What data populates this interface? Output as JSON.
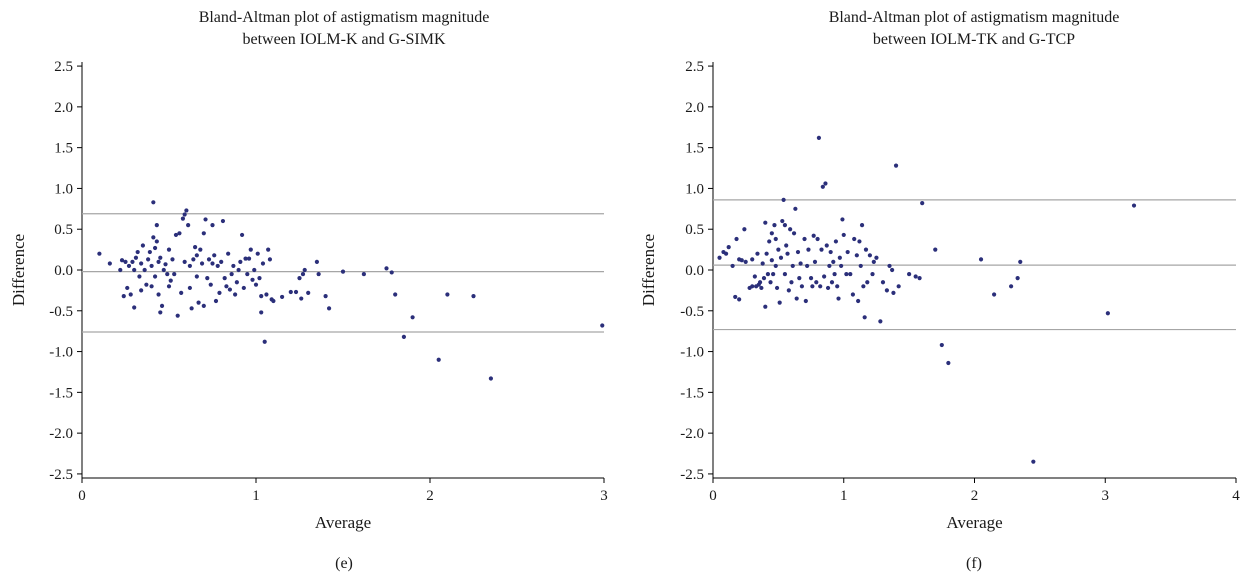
{
  "chart_data": [
    {
      "type": "scatter",
      "panel_label": "(e)",
      "title": "Bland-Altman plot of astigmatism magnitude",
      "subtitle": "between IOLM-K and G-SIMK",
      "xlabel": "Average",
      "ylabel": "Difference",
      "xlim": [
        0,
        3
      ],
      "ylim": [
        -2.55,
        2.55
      ],
      "xticks": [
        "0",
        "1",
        "2",
        "3"
      ],
      "yticks": [
        "2.5",
        "2.0",
        "1.5",
        "1.0",
        "0.5",
        "0.0",
        "-0.5",
        "-1.0",
        "-1.5",
        "-2.0",
        "-2.5"
      ],
      "grid": false,
      "reference_lines": [
        0.69,
        -0.02,
        -0.76
      ],
      "points": [
        [
          0.1,
          0.2
        ],
        [
          0.16,
          0.08
        ],
        [
          0.22,
          0.0
        ],
        [
          0.23,
          0.12
        ],
        [
          0.24,
          -0.32
        ],
        [
          0.25,
          0.1
        ],
        [
          0.26,
          -0.22
        ],
        [
          0.27,
          0.05
        ],
        [
          0.28,
          -0.3
        ],
        [
          0.29,
          0.1
        ],
        [
          0.3,
          0.0
        ],
        [
          0.3,
          -0.46
        ],
        [
          0.31,
          0.15
        ],
        [
          0.32,
          0.22
        ],
        [
          0.33,
          -0.08
        ],
        [
          0.34,
          0.08
        ],
        [
          0.34,
          -0.25
        ],
        [
          0.35,
          0.3
        ],
        [
          0.36,
          0.0
        ],
        [
          0.37,
          -0.18
        ],
        [
          0.38,
          0.13
        ],
        [
          0.39,
          0.22
        ],
        [
          0.4,
          -0.2
        ],
        [
          0.4,
          0.05
        ],
        [
          0.41,
          0.83
        ],
        [
          0.41,
          0.4
        ],
        [
          0.42,
          0.27
        ],
        [
          0.42,
          -0.08
        ],
        [
          0.43,
          0.35
        ],
        [
          0.43,
          0.55
        ],
        [
          0.44,
          0.1
        ],
        [
          0.44,
          -0.3
        ],
        [
          0.45,
          0.15
        ],
        [
          0.45,
          -0.52
        ],
        [
          0.46,
          -0.44
        ],
        [
          0.47,
          0.0
        ],
        [
          0.48,
          0.07
        ],
        [
          0.49,
          -0.05
        ],
        [
          0.5,
          0.25
        ],
        [
          0.5,
          -0.2
        ],
        [
          0.51,
          -0.13
        ],
        [
          0.52,
          0.13
        ],
        [
          0.53,
          -0.05
        ],
        [
          0.54,
          0.43
        ],
        [
          0.55,
          -0.56
        ],
        [
          0.56,
          0.45
        ],
        [
          0.57,
          -0.28
        ],
        [
          0.58,
          0.63
        ],
        [
          0.59,
          0.1
        ],
        [
          0.59,
          0.68
        ],
        [
          0.6,
          0.73
        ],
        [
          0.61,
          0.55
        ],
        [
          0.62,
          0.05
        ],
        [
          0.62,
          -0.22
        ],
        [
          0.63,
          -0.47
        ],
        [
          0.64,
          0.13
        ],
        [
          0.65,
          0.28
        ],
        [
          0.66,
          0.18
        ],
        [
          0.66,
          -0.08
        ],
        [
          0.67,
          -0.4
        ],
        [
          0.68,
          0.25
        ],
        [
          0.69,
          0.08
        ],
        [
          0.7,
          0.45
        ],
        [
          0.7,
          -0.44
        ],
        [
          0.71,
          0.62
        ],
        [
          0.72,
          -0.1
        ],
        [
          0.73,
          0.13
        ],
        [
          0.74,
          -0.18
        ],
        [
          0.75,
          0.08
        ],
        [
          0.75,
          0.55
        ],
        [
          0.76,
          0.18
        ],
        [
          0.77,
          -0.38
        ],
        [
          0.78,
          0.05
        ],
        [
          0.79,
          -0.28
        ],
        [
          0.8,
          0.1
        ],
        [
          0.81,
          0.6
        ],
        [
          0.82,
          -0.1
        ],
        [
          0.83,
          -0.2
        ],
        [
          0.84,
          0.2
        ],
        [
          0.85,
          -0.24
        ],
        [
          0.86,
          -0.05
        ],
        [
          0.87,
          0.05
        ],
        [
          0.88,
          -0.3
        ],
        [
          0.89,
          -0.15
        ],
        [
          0.9,
          0.0
        ],
        [
          0.91,
          0.1
        ],
        [
          0.92,
          0.43
        ],
        [
          0.93,
          -0.22
        ],
        [
          0.94,
          0.14
        ],
        [
          0.95,
          -0.05
        ],
        [
          0.96,
          0.14
        ],
        [
          0.97,
          0.25
        ],
        [
          0.98,
          -0.12
        ],
        [
          0.99,
          0.0
        ],
        [
          1.0,
          -0.18
        ],
        [
          1.01,
          0.2
        ],
        [
          1.02,
          -0.1
        ],
        [
          1.03,
          -0.32
        ],
        [
          1.03,
          -0.52
        ],
        [
          1.04,
          0.08
        ],
        [
          1.05,
          -0.88
        ],
        [
          1.06,
          -0.3
        ],
        [
          1.07,
          0.25
        ],
        [
          1.08,
          0.13
        ],
        [
          1.09,
          -0.36
        ],
        [
          1.1,
          -0.38
        ],
        [
          1.15,
          -0.33
        ],
        [
          1.2,
          -0.27
        ],
        [
          1.23,
          -0.27
        ],
        [
          1.25,
          -0.1
        ],
        [
          1.26,
          -0.35
        ],
        [
          1.27,
          -0.05
        ],
        [
          1.28,
          0.0
        ],
        [
          1.3,
          -0.28
        ],
        [
          1.35,
          0.1
        ],
        [
          1.36,
          -0.05
        ],
        [
          1.4,
          -0.32
        ],
        [
          1.42,
          -0.47
        ],
        [
          1.5,
          -0.02
        ],
        [
          1.62,
          -0.05
        ],
        [
          1.75,
          0.02
        ],
        [
          1.78,
          -0.03
        ],
        [
          1.8,
          -0.3
        ],
        [
          1.85,
          -0.82
        ],
        [
          1.9,
          -0.58
        ],
        [
          2.05,
          -1.1
        ],
        [
          2.1,
          -0.3
        ],
        [
          2.25,
          -0.32
        ],
        [
          2.35,
          -1.33
        ],
        [
          2.99,
          -0.68
        ]
      ]
    },
    {
      "type": "scatter",
      "panel_label": "(f)",
      "title": "Bland-Altman plot of astigmatism magnitude",
      "subtitle": "between IOLM-TK and G-TCP",
      "xlabel": "Average",
      "ylabel": "Difference",
      "xlim": [
        0,
        4
      ],
      "ylim": [
        -2.55,
        2.55
      ],
      "xticks": [
        "0",
        "1",
        "2",
        "3",
        "4"
      ],
      "yticks": [
        "2.5",
        "2.0",
        "1.5",
        "1.0",
        "0.5",
        "0.0",
        "-0.5",
        "-1.0",
        "-1.5",
        "-2.0",
        "-2.5"
      ],
      "grid": false,
      "reference_lines": [
        0.86,
        0.06,
        -0.73
      ],
      "points": [
        [
          0.05,
          0.15
        ],
        [
          0.08,
          0.22
        ],
        [
          0.1,
          0.2
        ],
        [
          0.12,
          0.28
        ],
        [
          0.15,
          0.05
        ],
        [
          0.17,
          -0.33
        ],
        [
          0.18,
          0.38
        ],
        [
          0.2,
          -0.36
        ],
        [
          0.2,
          0.13
        ],
        [
          0.22,
          0.12
        ],
        [
          0.24,
          0.5
        ],
        [
          0.25,
          0.1
        ],
        [
          0.28,
          -0.22
        ],
        [
          0.3,
          0.13
        ],
        [
          0.3,
          -0.2
        ],
        [
          0.32,
          -0.08
        ],
        [
          0.33,
          -0.2
        ],
        [
          0.34,
          0.2
        ],
        [
          0.35,
          -0.18
        ],
        [
          0.36,
          -0.15
        ],
        [
          0.37,
          -0.22
        ],
        [
          0.38,
          0.08
        ],
        [
          0.39,
          -0.1
        ],
        [
          0.4,
          -0.45
        ],
        [
          0.4,
          0.58
        ],
        [
          0.41,
          0.2
        ],
        [
          0.42,
          -0.05
        ],
        [
          0.43,
          0.35
        ],
        [
          0.44,
          -0.15
        ],
        [
          0.45,
          0.45
        ],
        [
          0.45,
          0.12
        ],
        [
          0.46,
          -0.05
        ],
        [
          0.47,
          0.55
        ],
        [
          0.48,
          0.38
        ],
        [
          0.48,
          0.05
        ],
        [
          0.49,
          -0.22
        ],
        [
          0.5,
          0.25
        ],
        [
          0.51,
          -0.4
        ],
        [
          0.52,
          0.15
        ],
        [
          0.53,
          0.6
        ],
        [
          0.54,
          0.86
        ],
        [
          0.55,
          0.55
        ],
        [
          0.55,
          -0.05
        ],
        [
          0.56,
          0.3
        ],
        [
          0.57,
          0.2
        ],
        [
          0.58,
          -0.25
        ],
        [
          0.59,
          0.5
        ],
        [
          0.6,
          -0.15
        ],
        [
          0.61,
          0.05
        ],
        [
          0.62,
          0.45
        ],
        [
          0.63,
          0.75
        ],
        [
          0.64,
          -0.35
        ],
        [
          0.65,
          0.22
        ],
        [
          0.66,
          -0.1
        ],
        [
          0.67,
          0.08
        ],
        [
          0.68,
          -0.2
        ],
        [
          0.7,
          0.38
        ],
        [
          0.71,
          -0.38
        ],
        [
          0.72,
          0.05
        ],
        [
          0.73,
          0.25
        ],
        [
          0.75,
          -0.1
        ],
        [
          0.76,
          -0.2
        ],
        [
          0.77,
          0.42
        ],
        [
          0.78,
          0.1
        ],
        [
          0.79,
          -0.15
        ],
        [
          0.8,
          0.38
        ],
        [
          0.81,
          1.62
        ],
        [
          0.82,
          -0.2
        ],
        [
          0.83,
          0.25
        ],
        [
          0.84,
          1.02
        ],
        [
          0.85,
          -0.08
        ],
        [
          0.86,
          1.06
        ],
        [
          0.87,
          0.3
        ],
        [
          0.88,
          -0.22
        ],
        [
          0.89,
          0.05
        ],
        [
          0.9,
          0.22
        ],
        [
          0.91,
          -0.15
        ],
        [
          0.92,
          0.1
        ],
        [
          0.93,
          -0.05
        ],
        [
          0.94,
          0.35
        ],
        [
          0.95,
          -0.2
        ],
        [
          0.96,
          -0.35
        ],
        [
          0.97,
          0.15
        ],
        [
          0.98,
          0.05
        ],
        [
          0.99,
          0.62
        ],
        [
          1.0,
          0.43
        ],
        [
          1.02,
          -0.05
        ],
        [
          1.03,
          0.22
        ],
        [
          1.05,
          -0.05
        ],
        [
          1.07,
          -0.3
        ],
        [
          1.08,
          0.38
        ],
        [
          1.1,
          0.18
        ],
        [
          1.11,
          -0.38
        ],
        [
          1.12,
          0.35
        ],
        [
          1.13,
          0.05
        ],
        [
          1.14,
          0.55
        ],
        [
          1.15,
          -0.2
        ],
        [
          1.16,
          -0.58
        ],
        [
          1.17,
          0.25
        ],
        [
          1.18,
          -0.15
        ],
        [
          1.2,
          0.18
        ],
        [
          1.22,
          -0.05
        ],
        [
          1.23,
          0.1
        ],
        [
          1.25,
          0.15
        ],
        [
          1.28,
          -0.63
        ],
        [
          1.3,
          -0.15
        ],
        [
          1.33,
          -0.25
        ],
        [
          1.35,
          0.05
        ],
        [
          1.37,
          0.0
        ],
        [
          1.38,
          -0.28
        ],
        [
          1.4,
          1.28
        ],
        [
          1.42,
          -0.2
        ],
        [
          1.5,
          -0.05
        ],
        [
          1.55,
          -0.08
        ],
        [
          1.58,
          -0.1
        ],
        [
          1.6,
          0.82
        ],
        [
          1.7,
          0.25
        ],
        [
          1.75,
          -0.92
        ],
        [
          1.8,
          -1.14
        ],
        [
          2.05,
          0.13
        ],
        [
          2.15,
          -0.3
        ],
        [
          2.28,
          -0.2
        ],
        [
          2.33,
          -0.1
        ],
        [
          2.35,
          0.1
        ],
        [
          2.45,
          -2.35
        ],
        [
          3.02,
          -0.53
        ],
        [
          3.22,
          0.79
        ]
      ]
    }
  ]
}
